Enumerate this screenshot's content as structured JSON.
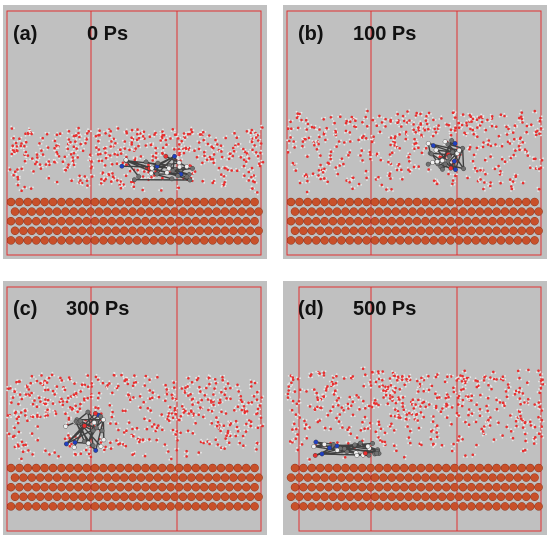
{
  "panels": [
    {
      "letter": "(a)",
      "time": "0 Ps"
    },
    {
      "letter": "(b)",
      "time": "100 Ps"
    },
    {
      "letter": "(c)",
      "time": "300 Ps"
    },
    {
      "letter": "(d)",
      "time": "500 Ps"
    }
  ],
  "colors": {
    "background": "#c0c0c0",
    "box_lines": "#e03030",
    "metal_atoms": "#c8502a",
    "water": "#e8e8e8",
    "oxygen": "#e83030",
    "molecule_carbon": "#707070",
    "molecule_nitrogen": "#2040c0"
  }
}
